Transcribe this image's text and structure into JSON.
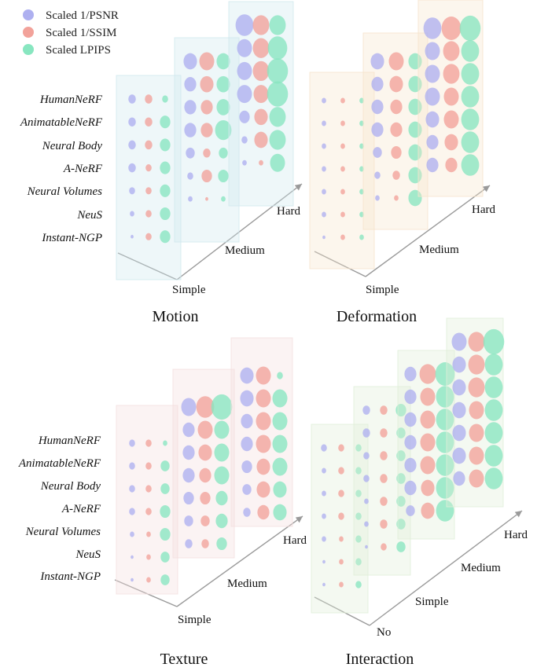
{
  "legend": [
    {
      "label": "Scaled 1/PSNR",
      "color": "#aeb0f0"
    },
    {
      "label": "Scaled 1/SSIM",
      "color": "#f2a29a"
    },
    {
      "label": "Scaled LPIPS",
      "color": "#88e6c0"
    }
  ],
  "colors": {
    "psnr": "#aeb0f0",
    "ssim": "#f2a29a",
    "lpips": "#88e6c0",
    "axis": "#9a9a9a"
  },
  "chart_data": [
    {
      "type": "scatter",
      "title": "Motion",
      "methods": [
        "HumanNeRF",
        "AnimatableNeRF",
        "Neural Body",
        "A-NeRF",
        "Neural Volumes",
        "NeuS",
        "Instant-NGP"
      ],
      "levels": [
        "Simple",
        "Medium",
        "Hard"
      ],
      "plane_color": "#cfe7ee",
      "series": [
        {
          "name": "Scaled 1/PSNR",
          "values": [
            [
              5,
              5,
              5,
              5,
              4,
              3,
              2
            ],
            [
              9,
              8,
              8,
              8,
              6,
              4,
              3
            ],
            [
              12,
              10,
              10,
              10,
              7,
              4,
              3
            ]
          ]
        },
        {
          "name": "Scaled 1/SSIM",
          "values": [
            [
              5,
              5,
              5,
              4,
              4,
              4,
              4
            ],
            [
              10,
              9,
              8,
              8,
              5,
              7,
              2
            ],
            [
              11,
              11,
              11,
              10,
              9,
              9,
              3
            ]
          ]
        },
        {
          "name": "Scaled LPIPS",
          "values": [
            [
              4,
              7,
              7,
              7,
              7,
              7,
              7
            ],
            [
              9,
              9,
              9,
              11,
              6,
              7,
              3
            ],
            [
              11,
              13,
              14,
              14,
              11,
              11,
              10
            ]
          ]
        }
      ]
    },
    {
      "type": "scatter",
      "title": "Deformation",
      "levels": [
        "Simple",
        "Medium",
        "Hard"
      ],
      "plane_color": "#f5e4cc",
      "series": [
        {
          "name": "Scaled 1/PSNR",
          "values": [
            [
              3,
              3,
              3,
              3,
              3,
              3,
              2
            ],
            [
              9,
              8,
              8,
              8,
              6,
              4,
              3
            ],
            [
              12,
              10,
              10,
              10,
              9,
              8,
              8
            ]
          ]
        },
        {
          "name": "Scaled 1/SSIM",
          "values": [
            [
              3,
              3,
              3,
              3,
              3,
              3,
              3
            ],
            [
              10,
              9,
              8,
              8,
              7,
              5,
              3
            ],
            [
              13,
              11,
              11,
              10,
              10,
              9,
              8
            ]
          ]
        },
        {
          "name": "Scaled LPIPS",
          "values": [
            [
              3,
              3,
              3,
              3,
              3,
              3,
              3
            ],
            [
              9,
              9,
              9,
              9,
              9,
              9,
              9
            ],
            [
              14,
              12,
              12,
              12,
              12,
              12,
              12
            ]
          ]
        }
      ]
    },
    {
      "type": "scatter",
      "title": "Texture",
      "levels": [
        "Simple",
        "Medium",
        "Hard"
      ],
      "plane_color": "#f3dede",
      "series": [
        {
          "name": "Scaled 1/PSNR",
          "values": [
            [
              4,
              4,
              4,
              4,
              3,
              2,
              2
            ],
            [
              10,
              8,
              8,
              8,
              7,
              6,
              5
            ],
            [
              9,
              9,
              8,
              8,
              7,
              6,
              5
            ]
          ]
        },
        {
          "name": "Scaled 1/SSIM",
          "values": [
            [
              4,
              4,
              4,
              4,
              3,
              3,
              3
            ],
            [
              12,
              10,
              9,
              8,
              7,
              6,
              5
            ],
            [
              10,
              10,
              10,
              10,
              9,
              9,
              8
            ]
          ]
        },
        {
          "name": "Scaled LPIPS",
          "values": [
            [
              3,
              6,
              6,
              7,
              7,
              6,
              6
            ],
            [
              14,
              10,
              10,
              10,
              8,
              8,
              7
            ],
            [
              4,
              10,
              10,
              10,
              10,
              9,
              9
            ]
          ]
        }
      ]
    },
    {
      "type": "scatter",
      "title": "Interaction",
      "levels": [
        "No",
        "Simple",
        "Medium",
        "Hard"
      ],
      "plane_color": "#e0efd8",
      "series": [
        {
          "name": "Scaled 1/PSNR",
          "values": [
            [
              4,
              3,
              3,
              3,
              3,
              2,
              2
            ],
            [
              5,
              5,
              4,
              4,
              3,
              3,
              2
            ],
            [
              8,
              8,
              8,
              8,
              8,
              8,
              6
            ],
            [
              10,
              9,
              9,
              9,
              9,
              9,
              8
            ]
          ]
        },
        {
          "name": "Scaled 1/SSIM",
          "values": [
            [
              4,
              4,
              4,
              4,
              3,
              3,
              3
            ],
            [
              5,
              5,
              5,
              5,
              5,
              5,
              4
            ],
            [
              11,
              10,
              10,
              10,
              10,
              9,
              9
            ],
            [
              11,
              11,
              11,
              10,
              10,
              10,
              10
            ]
          ]
        },
        {
          "name": "Scaled LPIPS",
          "values": [
            [
              4,
              4,
              4,
              4,
              4,
              4,
              4
            ],
            [
              7,
              6,
              6,
              6,
              6,
              6,
              6
            ],
            [
              13,
              12,
              12,
              12,
              12,
              12,
              12
            ],
            [
              14,
              12,
              12,
              12,
              12,
              12,
              12
            ]
          ]
        }
      ]
    }
  ]
}
